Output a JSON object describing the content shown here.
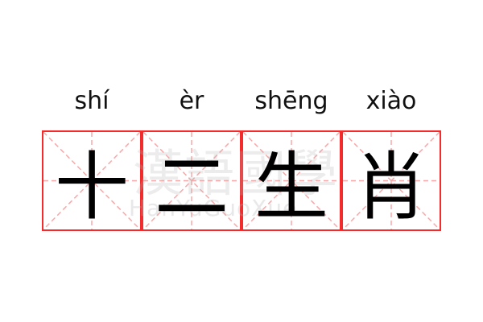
{
  "pinyin": [
    "shí",
    "èr",
    "shēng",
    "xiào"
  ],
  "characters": [
    "十",
    "二",
    "生",
    "肖"
  ],
  "watermark": {
    "chinese": "漢語國學",
    "latin": "HanYuGuoXue"
  },
  "colors": {
    "border": "#f52a2a",
    "guide": "#f8a8a8",
    "text": "#000000"
  }
}
